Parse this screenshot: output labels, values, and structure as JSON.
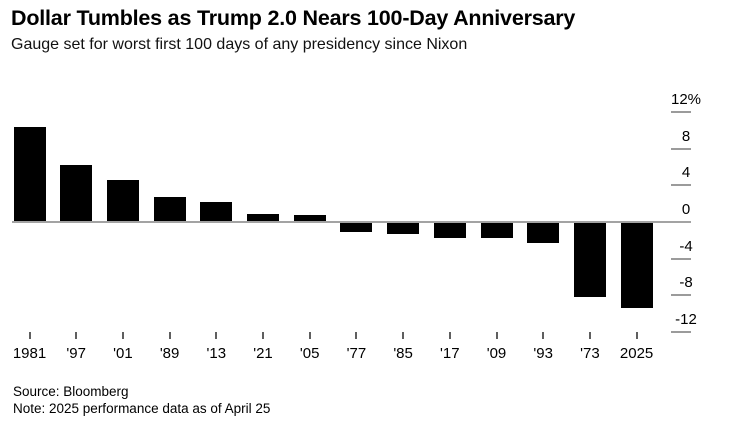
{
  "header": {
    "title": "Dollar Tumbles as Trump 2.0 Nears 100-Day Anniversary",
    "subtitle": "Gauge set for worst first 100 days of any presidency since Nixon"
  },
  "chart_data": {
    "type": "bar",
    "title": "Dollar Tumbles as Trump 2.0 Nears 100-Day Anniversary",
    "subtitle": "Gauge set for worst first 100 days of any presidency since Nixon",
    "categories": [
      "1981",
      "'97",
      "'01",
      "'89",
      "'13",
      "'21",
      "'05",
      "'77",
      "'85",
      "'17",
      "'09",
      "'93",
      "'73",
      "2025"
    ],
    "values": [
      10.4,
      6.2,
      4.6,
      2.7,
      2.2,
      0.9,
      0.8,
      -1.1,
      -1.3,
      -1.7,
      -1.8,
      -2.3,
      -8.2,
      -9.4
    ],
    "unit": "%",
    "xlabel": "",
    "ylabel": "",
    "ylim": [
      -12,
      12
    ],
    "yticks": [
      12,
      8,
      4,
      0,
      -4,
      -8,
      -12
    ],
    "ytick_labels": [
      "12%",
      "8",
      "4",
      "0",
      "-4",
      "-8",
      "-12"
    ],
    "grid": false,
    "legend": false,
    "bar_color": "#000000",
    "axis_color": "#a3a3a3",
    "tick_color": "#9b9b9b"
  },
  "footer": {
    "source": "Source: Bloomberg",
    "note": "Note: 2025 performance data as of April 25"
  },
  "colors": {
    "background": "#ffffff",
    "bar": "#000000",
    "text": "#000000"
  }
}
